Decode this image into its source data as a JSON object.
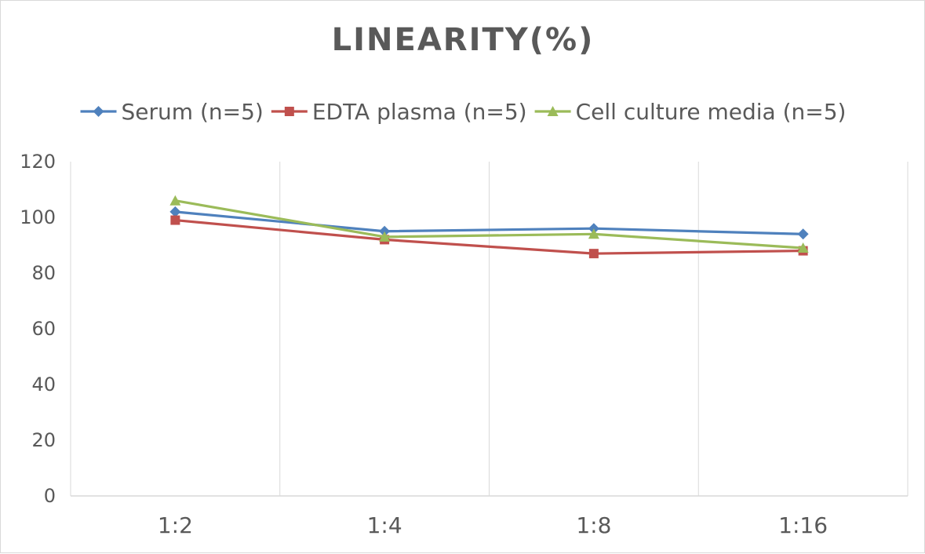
{
  "chart_data": {
    "type": "line",
    "title": "LINEARITY(%)",
    "categories": [
      "1:2",
      "1:4",
      "1:8",
      "1:16"
    ],
    "ylim": [
      0,
      120
    ],
    "yticks": [
      0,
      20,
      40,
      60,
      80,
      100,
      120
    ],
    "grid": "vertical",
    "legend": "top",
    "series": [
      {
        "name": "Serum (n=5)",
        "values": [
          102,
          95,
          96,
          94
        ],
        "color": "#4f81bd",
        "marker": "diamond"
      },
      {
        "name": "EDTA plasma (n=5)",
        "values": [
          99,
          92,
          87,
          88
        ],
        "color": "#c0504d",
        "marker": "square"
      },
      {
        "name": "Cell culture media (n=5)",
        "values": [
          106,
          93,
          94,
          89
        ],
        "color": "#9bbb59",
        "marker": "triangle"
      }
    ]
  }
}
